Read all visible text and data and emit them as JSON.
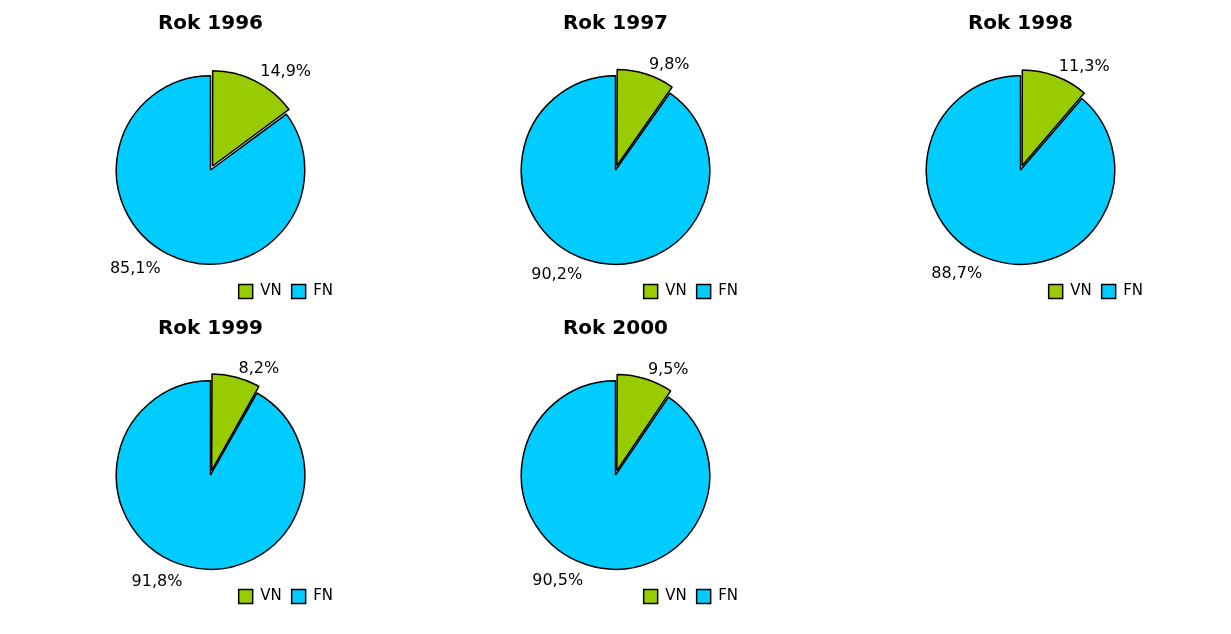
{
  "chart_data": [
    {
      "type": "pie",
      "title": "Rok 1996",
      "categories": [
        "VN",
        "FN"
      ],
      "values": [
        14.9,
        85.1
      ],
      "colors": [
        "#99cc00",
        "#00ccff"
      ],
      "value_labels": [
        "14,9%",
        "85,1%"
      ],
      "legend": "bottom right"
    },
    {
      "type": "pie",
      "title": "Rok 1997",
      "categories": [
        "VN",
        "FN"
      ],
      "values": [
        9.8,
        90.2
      ],
      "colors": [
        "#99cc00",
        "#00ccff"
      ],
      "value_labels": [
        "9,8%",
        "90,2%"
      ],
      "legend": "bottom right"
    },
    {
      "type": "pie",
      "title": "Rok 1998",
      "categories": [
        "VN",
        "FN"
      ],
      "values": [
        11.3,
        88.7
      ],
      "colors": [
        "#99cc00",
        "#00ccff"
      ],
      "value_labels": [
        "11,3%",
        "88,7%"
      ],
      "legend": "bottom right"
    },
    {
      "type": "pie",
      "title": "Rok 1999",
      "categories": [
        "VN",
        "FN"
      ],
      "values": [
        8.2,
        91.8
      ],
      "colors": [
        "#99cc00",
        "#00ccff"
      ],
      "value_labels": [
        "8,2%",
        "91,8%"
      ],
      "legend": "bottom right"
    },
    {
      "type": "pie",
      "title": "Rok 2000",
      "categories": [
        "VN",
        "FN"
      ],
      "values": [
        9.5,
        90.5
      ],
      "colors": [
        "#99cc00",
        "#00ccff"
      ],
      "value_labels": [
        "9,5%",
        "90,5%"
      ],
      "legend": "bottom right"
    }
  ]
}
